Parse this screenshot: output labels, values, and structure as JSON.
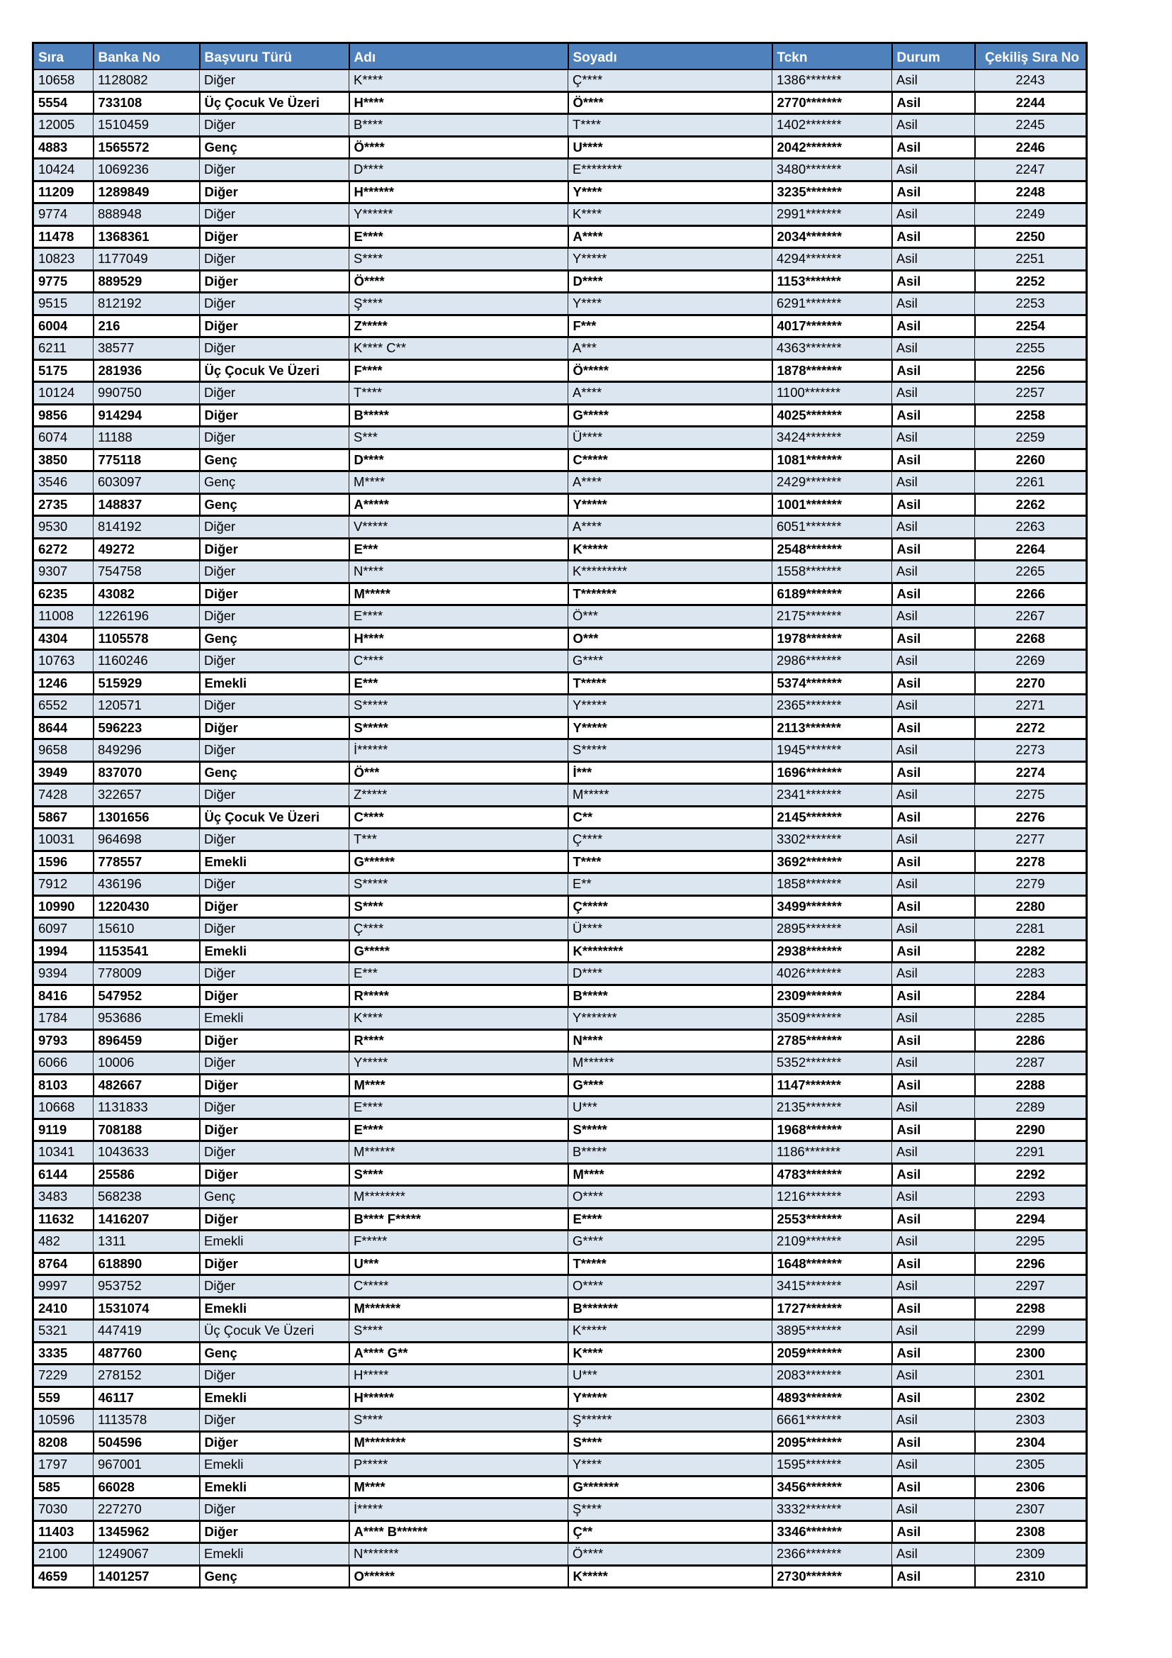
{
  "table": {
    "columns": [
      "Sıra",
      "Banka No",
      "Başvuru Türü",
      "Adı",
      "Soyadı",
      "Tckn",
      "Durum",
      "Çekiliş Sıra No"
    ],
    "status_value": "Asil",
    "rows": [
      [
        "10658",
        "1128082",
        "Diğer",
        "K****",
        "Ç****",
        "1386*******",
        "Asil",
        "2243"
      ],
      [
        "5554",
        "733108",
        "Üç Çocuk Ve Üzeri",
        "H****",
        "Ö****",
        "2770*******",
        "Asil",
        "2244"
      ],
      [
        "12005",
        "1510459",
        "Diğer",
        "B****",
        "T****",
        "1402*******",
        "Asil",
        "2245"
      ],
      [
        "4883",
        "1565572",
        "Genç",
        "Ö****",
        "U****",
        "2042*******",
        "Asil",
        "2246"
      ],
      [
        "10424",
        "1069236",
        "Diğer",
        "D****",
        "E********",
        "3480*******",
        "Asil",
        "2247"
      ],
      [
        "11209",
        "1289849",
        "Diğer",
        "H******",
        "Y****",
        "3235*******",
        "Asil",
        "2248"
      ],
      [
        "9774",
        "888948",
        "Diğer",
        "Y******",
        "K****",
        "2991*******",
        "Asil",
        "2249"
      ],
      [
        "11478",
        "1368361",
        "Diğer",
        "E****",
        "A****",
        "2034*******",
        "Asil",
        "2250"
      ],
      [
        "10823",
        "1177049",
        "Diğer",
        "S****",
        "Y*****",
        "4294*******",
        "Asil",
        "2251"
      ],
      [
        "9775",
        "889529",
        "Diğer",
        "Ö****",
        "D****",
        "1153*******",
        "Asil",
        "2252"
      ],
      [
        "9515",
        "812192",
        "Diğer",
        "Ş****",
        "Y****",
        "6291*******",
        "Asil",
        "2253"
      ],
      [
        "6004",
        "216",
        "Diğer",
        "Z*****",
        "F***",
        "4017*******",
        "Asil",
        "2254"
      ],
      [
        "6211",
        "38577",
        "Diğer",
        "K**** C**",
        "A***",
        "4363*******",
        "Asil",
        "2255"
      ],
      [
        "5175",
        "281936",
        "Üç Çocuk Ve Üzeri",
        "F****",
        "Ö*****",
        "1878*******",
        "Asil",
        "2256"
      ],
      [
        "10124",
        "990750",
        "Diğer",
        "T****",
        "A****",
        "1100*******",
        "Asil",
        "2257"
      ],
      [
        "9856",
        "914294",
        "Diğer",
        "B*****",
        "G*****",
        "4025*******",
        "Asil",
        "2258"
      ],
      [
        "6074",
        "11188",
        "Diğer",
        "S***",
        "Ü****",
        "3424*******",
        "Asil",
        "2259"
      ],
      [
        "3850",
        "775118",
        "Genç",
        "D****",
        "C*****",
        "1081*******",
        "Asil",
        "2260"
      ],
      [
        "3546",
        "603097",
        "Genç",
        "M****",
        "A****",
        "2429*******",
        "Asil",
        "2261"
      ],
      [
        "2735",
        "148837",
        "Genç",
        "A*****",
        "Y*****",
        "1001*******",
        "Asil",
        "2262"
      ],
      [
        "9530",
        "814192",
        "Diğer",
        "V*****",
        "A****",
        "6051*******",
        "Asil",
        "2263"
      ],
      [
        "6272",
        "49272",
        "Diğer",
        "E***",
        "K*****",
        "2548*******",
        "Asil",
        "2264"
      ],
      [
        "9307",
        "754758",
        "Diğer",
        "N****",
        "K*********",
        "1558*******",
        "Asil",
        "2265"
      ],
      [
        "6235",
        "43082",
        "Diğer",
        "M*****",
        "T*******",
        "6189*******",
        "Asil",
        "2266"
      ],
      [
        "11008",
        "1226196",
        "Diğer",
        "E****",
        "Ö***",
        "2175*******",
        "Asil",
        "2267"
      ],
      [
        "4304",
        "1105578",
        "Genç",
        "H****",
        "O***",
        "1978*******",
        "Asil",
        "2268"
      ],
      [
        "10763",
        "1160246",
        "Diğer",
        "C****",
        "G****",
        "2986*******",
        "Asil",
        "2269"
      ],
      [
        "1246",
        "515929",
        "Emekli",
        "E***",
        "T*****",
        "5374*******",
        "Asil",
        "2270"
      ],
      [
        "6552",
        "120571",
        "Diğer",
        "S*****",
        "Y*****",
        "2365*******",
        "Asil",
        "2271"
      ],
      [
        "8644",
        "596223",
        "Diğer",
        "S*****",
        "Y*****",
        "2113*******",
        "Asil",
        "2272"
      ],
      [
        "9658",
        "849296",
        "Diğer",
        "İ******",
        "S*****",
        "1945*******",
        "Asil",
        "2273"
      ],
      [
        "3949",
        "837070",
        "Genç",
        "Ö***",
        "İ***",
        "1696*******",
        "Asil",
        "2274"
      ],
      [
        "7428",
        "322657",
        "Diğer",
        "Z*****",
        "M*****",
        "2341*******",
        "Asil",
        "2275"
      ],
      [
        "5867",
        "1301656",
        "Üç Çocuk Ve Üzeri",
        "C****",
        "C**",
        "2145*******",
        "Asil",
        "2276"
      ],
      [
        "10031",
        "964698",
        "Diğer",
        "T***",
        "Ç****",
        "3302*******",
        "Asil",
        "2277"
      ],
      [
        "1596",
        "778557",
        "Emekli",
        "G******",
        "T****",
        "3692*******",
        "Asil",
        "2278"
      ],
      [
        "7912",
        "436196",
        "Diğer",
        "S*****",
        "E**",
        "1858*******",
        "Asil",
        "2279"
      ],
      [
        "10990",
        "1220430",
        "Diğer",
        "S****",
        "Ç*****",
        "3499*******",
        "Asil",
        "2280"
      ],
      [
        "6097",
        "15610",
        "Diğer",
        "Ç****",
        "Ü****",
        "2895*******",
        "Asil",
        "2281"
      ],
      [
        "1994",
        "1153541",
        "Emekli",
        "G*****",
        "K********",
        "2938*******",
        "Asil",
        "2282"
      ],
      [
        "9394",
        "778009",
        "Diğer",
        "E***",
        "D****",
        "4026*******",
        "Asil",
        "2283"
      ],
      [
        "8416",
        "547952",
        "Diğer",
        "R*****",
        "B*****",
        "2309*******",
        "Asil",
        "2284"
      ],
      [
        "1784",
        "953686",
        "Emekli",
        "K****",
        "Y*******",
        "3509*******",
        "Asil",
        "2285"
      ],
      [
        "9793",
        "896459",
        "Diğer",
        "R****",
        "N****",
        "2785*******",
        "Asil",
        "2286"
      ],
      [
        "6066",
        "10006",
        "Diğer",
        "Y*****",
        "M******",
        "5352*******",
        "Asil",
        "2287"
      ],
      [
        "8103",
        "482667",
        "Diğer",
        "M****",
        "G****",
        "1147*******",
        "Asil",
        "2288"
      ],
      [
        "10668",
        "1131833",
        "Diğer",
        "E****",
        "U***",
        "2135*******",
        "Asil",
        "2289"
      ],
      [
        "9119",
        "708188",
        "Diğer",
        "E****",
        "S*****",
        "1968*******",
        "Asil",
        "2290"
      ],
      [
        "10341",
        "1043633",
        "Diğer",
        "M******",
        "B*****",
        "1186*******",
        "Asil",
        "2291"
      ],
      [
        "6144",
        "25586",
        "Diğer",
        "S****",
        "M****",
        "4783*******",
        "Asil",
        "2292"
      ],
      [
        "3483",
        "568238",
        "Genç",
        "M********",
        "O****",
        "1216*******",
        "Asil",
        "2293"
      ],
      [
        "11632",
        "1416207",
        "Diğer",
        "B**** F*****",
        "E****",
        "2553*******",
        "Asil",
        "2294"
      ],
      [
        "482",
        "1311",
        "Emekli",
        "F*****",
        "G****",
        "2109*******",
        "Asil",
        "2295"
      ],
      [
        "8764",
        "618890",
        "Diğer",
        "U***",
        "T*****",
        "1648*******",
        "Asil",
        "2296"
      ],
      [
        "9997",
        "953752",
        "Diğer",
        "C*****",
        "O****",
        "3415*******",
        "Asil",
        "2297"
      ],
      [
        "2410",
        "1531074",
        "Emekli",
        "M*******",
        "B*******",
        "1727*******",
        "Asil",
        "2298"
      ],
      [
        "5321",
        "447419",
        "Üç Çocuk Ve Üzeri",
        "S****",
        "K*****",
        "3895*******",
        "Asil",
        "2299"
      ],
      [
        "3335",
        "487760",
        "Genç",
        "A**** G**",
        "K****",
        "2059*******",
        "Asil",
        "2300"
      ],
      [
        "7229",
        "278152",
        "Diğer",
        "H*****",
        "U***",
        "2083*******",
        "Asil",
        "2301"
      ],
      [
        "559",
        "46117",
        "Emekli",
        "H******",
        "Y*****",
        "4893*******",
        "Asil",
        "2302"
      ],
      [
        "10596",
        "1113578",
        "Diğer",
        "S****",
        "Ş******",
        "6661*******",
        "Asil",
        "2303"
      ],
      [
        "8208",
        "504596",
        "Diğer",
        "M********",
        "S****",
        "2095*******",
        "Asil",
        "2304"
      ],
      [
        "1797",
        "967001",
        "Emekli",
        "P*****",
        "Y****",
        "1595*******",
        "Asil",
        "2305"
      ],
      [
        "585",
        "66028",
        "Emekli",
        "M****",
        "G*******",
        "3456*******",
        "Asil",
        "2306"
      ],
      [
        "7030",
        "227270",
        "Diğer",
        "İ*****",
        "Ş****",
        "3332*******",
        "Asil",
        "2307"
      ],
      [
        "11403",
        "1345962",
        "Diğer",
        "A**** B******",
        "Ç**",
        "3346*******",
        "Asil",
        "2308"
      ],
      [
        "2100",
        "1249067",
        "Emekli",
        "N*******",
        "Ö****",
        "2366*******",
        "Asil",
        "2309"
      ],
      [
        "4659",
        "1401257",
        "Genç",
        "O******",
        "K*****",
        "2730*******",
        "Asil",
        "2310"
      ]
    ],
    "colors": {
      "header_bg": "#4F81BD",
      "header_text": "#FFFFFF",
      "row_light_bg": "#DCE6F1",
      "row_bold_bg": "#FFFFFF",
      "border": "#000000"
    }
  }
}
